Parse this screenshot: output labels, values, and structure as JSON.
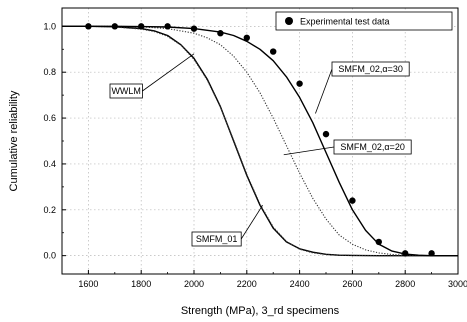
{
  "chart_data": {
    "type": "line",
    "title": "",
    "xlabel": "Strength (MPa), 3_rd specimens",
    "ylabel": "Cumulative reliability",
    "xlim": [
      1500,
      3000
    ],
    "ylim": [
      -0.08,
      1.08
    ],
    "x_ticks": [
      1600,
      1800,
      2000,
      2200,
      2400,
      2600,
      2800,
      3000
    ],
    "y_ticks": [
      0.0,
      0.2,
      0.4,
      0.6,
      0.8,
      1.0
    ],
    "grid": true,
    "legend": {
      "position": "top-right",
      "entries": [
        "Experimental test data"
      ]
    },
    "series": [
      {
        "name": "Experimental test data",
        "style": "scatter",
        "color": "#000000",
        "x": [
          1600,
          1700,
          1800,
          1900,
          2000,
          2100,
          2200,
          2300,
          2400,
          2500,
          2600,
          2700,
          2800,
          2900
        ],
        "y": [
          1.0,
          1.0,
          1.0,
          1.0,
          0.99,
          0.97,
          0.95,
          0.89,
          0.75,
          0.53,
          0.24,
          0.06,
          0.01,
          0.01
        ]
      },
      {
        "name": "WWLM",
        "style": "solid",
        "color": "#000000",
        "x": [
          1500,
          1600,
          1700,
          1800,
          1850,
          1900,
          1950,
          2000,
          2050,
          2100,
          2150,
          2200,
          2250,
          2300,
          2350,
          2400,
          2450,
          2500,
          2550,
          2600,
          2700,
          2800,
          3000
        ],
        "y": [
          1.0,
          1.0,
          0.998,
          0.99,
          0.98,
          0.96,
          0.92,
          0.86,
          0.77,
          0.65,
          0.5,
          0.35,
          0.22,
          0.12,
          0.06,
          0.03,
          0.015,
          0.006,
          0.002,
          0.001,
          0.0,
          0.0,
          0.0
        ]
      },
      {
        "name": "SMFM_01",
        "style": "dotted",
        "color": "#333333",
        "x": [
          1500,
          1600,
          1700,
          1800,
          1850,
          1900,
          1950,
          2000,
          2050,
          2100,
          2150,
          2200,
          2250,
          2300,
          2350,
          2400,
          2450,
          2500,
          2550,
          2600,
          2700,
          2800,
          3000
        ],
        "y": [
          1.0,
          1.0,
          0.997,
          0.988,
          0.977,
          0.956,
          0.918,
          0.856,
          0.766,
          0.648,
          0.505,
          0.355,
          0.225,
          0.125,
          0.062,
          0.028,
          0.012,
          0.005,
          0.002,
          0.001,
          0.0,
          0.0,
          0.0
        ]
      },
      {
        "name": "SMFM_02,α=20",
        "style": "dotted",
        "color": "#333333",
        "x": [
          1500,
          1700,
          1800,
          1900,
          2000,
          2050,
          2100,
          2150,
          2200,
          2250,
          2300,
          2350,
          2400,
          2450,
          2500,
          2550,
          2600,
          2650,
          2700,
          2750,
          2800,
          2900,
          3000
        ],
        "y": [
          1.0,
          1.0,
          0.998,
          0.99,
          0.97,
          0.95,
          0.92,
          0.87,
          0.8,
          0.71,
          0.6,
          0.48,
          0.36,
          0.25,
          0.16,
          0.09,
          0.05,
          0.025,
          0.012,
          0.005,
          0.002,
          0.0,
          0.0
        ]
      },
      {
        "name": "SMFM_02,α=30",
        "style": "solid",
        "color": "#000000",
        "x": [
          1500,
          1700,
          1800,
          1900,
          2000,
          2100,
          2150,
          2200,
          2250,
          2300,
          2350,
          2400,
          2450,
          2500,
          2550,
          2600,
          2650,
          2700,
          2750,
          2800,
          2850,
          2900,
          3000
        ],
        "y": [
          1.0,
          1.0,
          0.999,
          0.997,
          0.99,
          0.975,
          0.96,
          0.935,
          0.9,
          0.85,
          0.78,
          0.69,
          0.58,
          0.45,
          0.32,
          0.2,
          0.11,
          0.05,
          0.02,
          0.007,
          0.002,
          0.0,
          0.0
        ]
      }
    ],
    "annotations": [
      {
        "text": "WWLM",
        "target": [
          2000,
          0.88
        ]
      },
      {
        "text": "SMFM_02,α=30",
        "target": [
          2460,
          0.62
        ]
      },
      {
        "text": "SMFM_02,α=20",
        "target": [
          2340,
          0.44
        ]
      },
      {
        "text": "SMFM_01",
        "target": [
          2260,
          0.22
        ]
      }
    ]
  }
}
